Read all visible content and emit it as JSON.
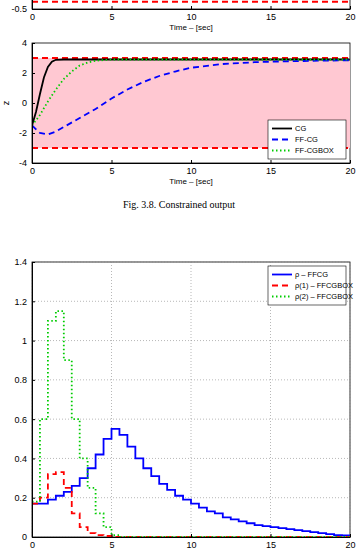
{
  "chart_data": [
    {
      "type": "line",
      "xlabel": "Time – [sec]",
      "xlim": [
        0,
        20
      ],
      "xticks": [
        0,
        5,
        10,
        15,
        20
      ],
      "ylim": [
        -0.5,
        1
      ],
      "yticks": [
        -0.5
      ],
      "grid": false,
      "series": [
        {
          "color": "#ff0000",
          "line_style": "dashed",
          "x": [
            0,
            20
          ],
          "values": [
            -0.4,
            -0.4
          ]
        }
      ]
    },
    {
      "type": "line",
      "xlabel": "Time – [sec]",
      "ylabel": "z",
      "xlim": [
        0,
        20
      ],
      "xticks": [
        0,
        5,
        10,
        15,
        20
      ],
      "ylim": [
        -4,
        4
      ],
      "yticks": [
        -4,
        -2,
        0,
        2,
        4
      ],
      "grid": false,
      "legend": "lower right",
      "annotations": [
        "Fig. 3.8. Constrained output"
      ],
      "series": [
        {
          "type": "band",
          "color": "#ffc8d2",
          "x": [
            0,
            20
          ],
          "values": [
            3,
            3
          ],
          "lower": [
            -3,
            -3
          ]
        },
        {
          "color": "#ff0000",
          "line_style": "dashed",
          "x": [
            0,
            20
          ],
          "values": [
            3,
            3
          ]
        },
        {
          "color": "#ff0000",
          "line_style": "dashed",
          "x": [
            0,
            20
          ],
          "values": [
            -3,
            -3
          ]
        },
        {
          "name": "CG",
          "color": "#000000",
          "line_style": "solid",
          "x": [
            0,
            0.25,
            0.5,
            0.75,
            1,
            1.25,
            1.5,
            2,
            3,
            5,
            10,
            15,
            20
          ],
          "values": [
            -1.5,
            -0.6,
            0.6,
            1.7,
            2.4,
            2.75,
            2.88,
            2.9,
            2.9,
            2.9,
            2.9,
            2.9,
            2.9
          ]
        },
        {
          "name": "FF-CG",
          "color": "#0000ff",
          "line_style": "dashed",
          "x": [
            0,
            0.5,
            1,
            1.5,
            2,
            3,
            4,
            5,
            6,
            7,
            8,
            9,
            10,
            12,
            14,
            16,
            18,
            20
          ],
          "values": [
            -1.5,
            -2.0,
            -2.1,
            -1.9,
            -1.6,
            -1.0,
            -0.4,
            0.3,
            0.9,
            1.4,
            1.8,
            2.1,
            2.35,
            2.6,
            2.72,
            2.78,
            2.82,
            2.85
          ]
        },
        {
          "name": "FF-CGBOX",
          "color": "#00cc00",
          "line_style": "dotted",
          "x": [
            0,
            0.5,
            1,
            1.5,
            2,
            2.5,
            3,
            3.5,
            4,
            5,
            10,
            20
          ],
          "values": [
            -1.5,
            -0.8,
            0.1,
            0.9,
            1.6,
            2.1,
            2.5,
            2.7,
            2.82,
            2.9,
            2.9,
            2.9
          ]
        }
      ]
    },
    {
      "type": "line",
      "xlim": [
        0,
        20
      ],
      "xticks": [
        0,
        5,
        10,
        15,
        20
      ],
      "ylim": [
        0,
        1.4
      ],
      "yticks": [
        0,
        0.2,
        0.4,
        0.6,
        0.8,
        1,
        1.2,
        1.4
      ],
      "grid": true,
      "legend": "upper right",
      "series": [
        {
          "name": "ρ – FFCG",
          "color": "#0000ff",
          "line_style": "solid",
          "type": "step",
          "x": [
            0,
            0.5,
            1,
            1.5,
            2,
            2.5,
            3,
            3.5,
            4,
            4.5,
            5,
            5.5,
            6,
            6.5,
            7,
            7.5,
            8,
            8.5,
            9,
            9.5,
            10,
            10.5,
            11,
            11.5,
            12,
            12.5,
            13,
            13.5,
            14,
            14.5,
            15,
            15.5,
            16,
            16.5,
            17,
            17.5,
            18,
            18.5,
            19,
            19.5,
            20
          ],
          "values": [
            0.17,
            0.17,
            0.19,
            0.21,
            0.23,
            0.26,
            0.3,
            0.35,
            0.42,
            0.5,
            0.55,
            0.52,
            0.46,
            0.4,
            0.35,
            0.31,
            0.27,
            0.24,
            0.21,
            0.19,
            0.17,
            0.15,
            0.13,
            0.12,
            0.1,
            0.09,
            0.08,
            0.07,
            0.06,
            0.055,
            0.05,
            0.045,
            0.04,
            0.035,
            0.03,
            0.025,
            0.02,
            0.015,
            0.01,
            0.008,
            0.005
          ]
        },
        {
          "name": "ρ(1) – FFCGBOX",
          "color": "#ff0000",
          "line_style": "dashed",
          "type": "step",
          "x": [
            0,
            0.5,
            1,
            1.5,
            2,
            2.5,
            3,
            3.5,
            4,
            4.5,
            5,
            10,
            15,
            20
          ],
          "values": [
            0.17,
            0.2,
            0.32,
            0.33,
            0.25,
            0.12,
            0.05,
            0.02,
            0.01,
            0.005,
            0,
            0,
            0,
            0
          ]
        },
        {
          "name": "ρ(2) – FFCGBOX",
          "color": "#00cc00",
          "line_style": "dotted",
          "type": "step",
          "x": [
            0,
            0.5,
            1,
            1.5,
            2,
            2.5,
            3,
            3.5,
            4,
            4.5,
            5,
            5.5,
            10,
            15,
            20
          ],
          "values": [
            0.18,
            0.6,
            1.1,
            1.15,
            0.9,
            0.6,
            0.4,
            0.25,
            0.12,
            0.05,
            0.01,
            0,
            0,
            0,
            0
          ]
        }
      ]
    }
  ]
}
